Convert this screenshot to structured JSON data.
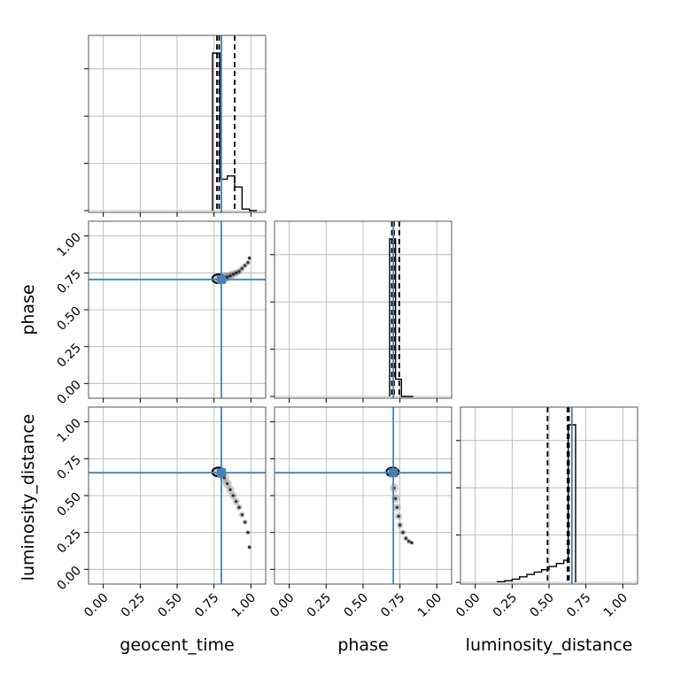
{
  "chart_data": {
    "type": "corner",
    "parameters": [
      "geocent_time",
      "phase",
      "luminosity_distance"
    ],
    "axis_range": [
      -0.1,
      1.1
    ],
    "tick_labels": [
      "0.00",
      "0.25",
      "0.50",
      "0.75",
      "1.00"
    ],
    "tick_values": [
      0,
      0.25,
      0.5,
      0.75,
      1.0
    ],
    "grid": true,
    "colors": {
      "truth": "#4682b4",
      "hist": "#000000",
      "grid": "#b0b0b0"
    },
    "truths": {
      "geocent_time": 0.8,
      "phase": 0.705,
      "luminosity_distance": 0.655
    },
    "histograms": [
      {
        "parameter": "geocent_time",
        "bin_edges": [
          0.74,
          0.79,
          0.84,
          0.89,
          0.94,
          0.99,
          1.04
        ],
        "counts": [
          1.0,
          0.2,
          0.22,
          0.15,
          0.01,
          0.0
        ],
        "quantiles": [
          0.77,
          0.785,
          0.89
        ]
      },
      {
        "parameter": "phase",
        "bin_edges": [
          0.68,
          0.72,
          0.76,
          0.8,
          0.84
        ],
        "counts": [
          1.0,
          0.11,
          0.0,
          0.0
        ],
        "quantiles": [
          0.695,
          0.71,
          0.745
        ]
      },
      {
        "parameter": "luminosity_distance",
        "bin_edges": [
          0.15,
          0.2,
          0.25,
          0.3,
          0.35,
          0.4,
          0.45,
          0.5,
          0.55,
          0.6,
          0.63,
          0.68
        ],
        "counts": [
          0.004,
          0.01,
          0.02,
          0.035,
          0.05,
          0.065,
          0.08,
          0.1,
          0.12,
          0.14,
          1.0
        ],
        "quantiles": [
          0.49,
          0.625,
          0.635
        ]
      }
    ],
    "scatter_panels": [
      {
        "x": "geocent_time",
        "y": "phase",
        "points": [
          [
            0.78,
            0.71
          ],
          [
            0.8,
            0.71
          ],
          [
            0.82,
            0.72
          ],
          [
            0.84,
            0.72
          ],
          [
            0.86,
            0.73
          ],
          [
            0.88,
            0.74
          ],
          [
            0.9,
            0.75
          ],
          [
            0.92,
            0.76
          ],
          [
            0.94,
            0.78
          ],
          [
            0.96,
            0.8
          ],
          [
            0.98,
            0.82
          ],
          [
            0.99,
            0.85
          ]
        ]
      },
      {
        "x": "geocent_time",
        "y": "luminosity_distance",
        "points": [
          [
            0.78,
            0.66
          ],
          [
            0.8,
            0.65
          ],
          [
            0.82,
            0.62
          ],
          [
            0.84,
            0.58
          ],
          [
            0.86,
            0.54
          ],
          [
            0.88,
            0.5
          ],
          [
            0.9,
            0.46
          ],
          [
            0.92,
            0.42
          ],
          [
            0.94,
            0.37
          ],
          [
            0.96,
            0.32
          ],
          [
            0.98,
            0.25
          ],
          [
            0.99,
            0.15
          ]
        ]
      },
      {
        "x": "phase",
        "y": "luminosity_distance",
        "points": [
          [
            0.7,
            0.66
          ],
          [
            0.71,
            0.55
          ],
          [
            0.72,
            0.48
          ],
          [
            0.73,
            0.42
          ],
          [
            0.74,
            0.36
          ],
          [
            0.75,
            0.3
          ],
          [
            0.77,
            0.25
          ],
          [
            0.79,
            0.21
          ],
          [
            0.81,
            0.19
          ],
          [
            0.83,
            0.18
          ]
        ]
      }
    ]
  }
}
